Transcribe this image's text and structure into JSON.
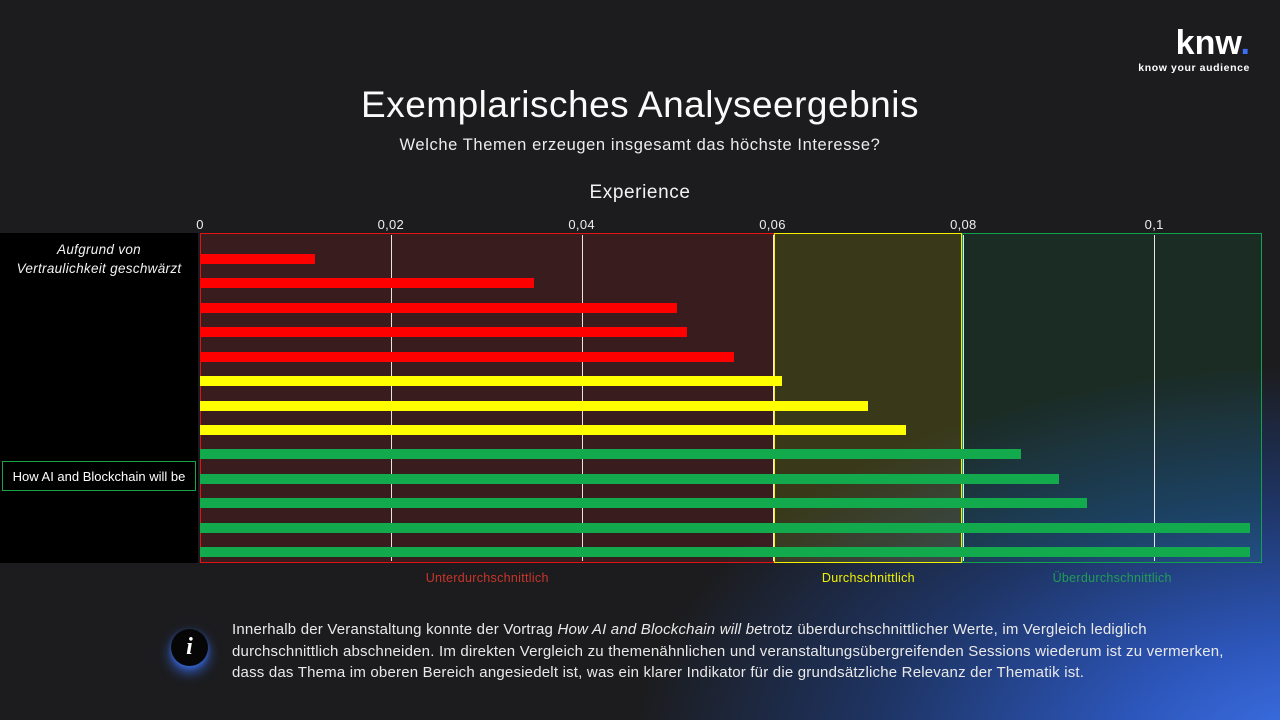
{
  "logo": {
    "word": "knw",
    "dot": ".",
    "tagline": "know your audience"
  },
  "header": {
    "title": "Exemplarisches Analyseergebnis",
    "subtitle": "Welche Themen erzeugen insgesamt das höchste Interesse?"
  },
  "chart": {
    "title": "Experience",
    "redacted_note": [
      "Aufgrund von",
      "Vertraulichkeit geschwärzt"
    ],
    "highlight_label": "How AI and Blockchain will be",
    "chart_data": {
      "type": "bar",
      "orientation": "horizontal",
      "title": "Experience",
      "categories": [
        "",
        "",
        "",
        "",
        "",
        "",
        "",
        "",
        "",
        "How AI and Blockchain will be",
        "",
        "",
        ""
      ],
      "values": [
        0.012,
        0.035,
        0.05,
        0.051,
        0.056,
        0.061,
        0.07,
        0.074,
        0.086,
        0.09,
        0.093,
        0.11,
        0.11
      ],
      "bar_colors": [
        "#ff0000",
        "#ff0000",
        "#ff0000",
        "#ff0000",
        "#ff0000",
        "#ffff00",
        "#ffff00",
        "#ffff00",
        "#13a94d",
        "#13a94d",
        "#13a94d",
        "#13a94d",
        "#13a94d"
      ],
      "xlim": [
        0,
        0.1113
      ],
      "x_ticks": [
        0,
        0.02,
        0.04,
        0.06,
        0.08,
        0.1
      ],
      "x_tick_labels": [
        "0",
        "0,02",
        "0,04",
        "0,06",
        "0,08",
        "0,1"
      ],
      "grid": true,
      "legend": "none",
      "zones": [
        {
          "label": "Unterdurchschnittlich",
          "from": 0,
          "to": 0.0602,
          "fill": "rgba(255,32,32,0.13)",
          "border": "#e01414",
          "label_color": "#c9352a"
        },
        {
          "label": "Durchschnittlich",
          "from": 0.0602,
          "to": 0.0799,
          "fill": "rgba(255,255,0,0.13)",
          "border": "#f2f200",
          "label_color": "#f2f200"
        },
        {
          "label": "Überdurchschnittlich",
          "from": 0.0799,
          "to": 0.1113,
          "fill": "rgba(22,190,95,0.10)",
          "border": "#12a24d",
          "label_color": "#1f9e54"
        }
      ]
    }
  },
  "footnote": {
    "icon_glyph": "i",
    "text_before": "Innerhalb der Veranstaltung konnte der Vortrag ",
    "text_italic": "How AI and Blockchain will be",
    "text_after": "trotz überdurchschnittlicher Werte, im Vergleich lediglich durchschnittlich abschneiden. Im direkten Vergleich zu themenähnlichen und veranstaltungsübergreifenden Sessions wiederum ist zu vermerken, dass das Thema im oberen Bereich angesiedelt ist, was ein klarer Indikator für die grundsätzliche Relevanz der Thematik ist."
  },
  "colors": {
    "accent_blue": "#3a6ff0",
    "bar_red": "#ff0000",
    "bar_yellow": "#ffff00",
    "bar_green": "#13a94d"
  }
}
